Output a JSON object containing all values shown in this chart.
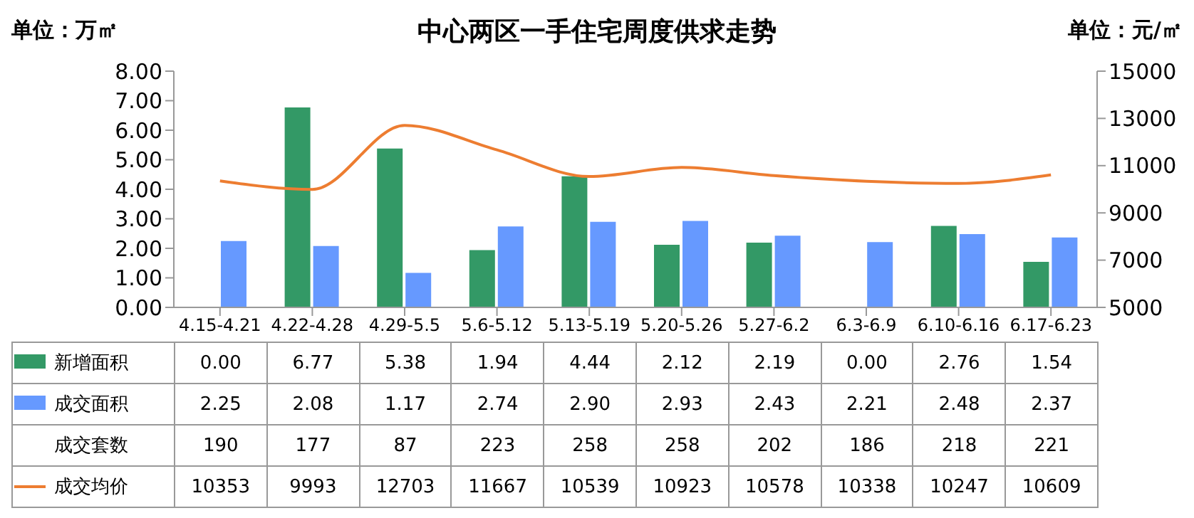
{
  "chart_data": {
    "type": "bar",
    "title": "中心两区一手住宅周度供求走势",
    "ylabel": "单位：万㎡",
    "y2label": "单位：元/㎡",
    "categories": [
      "4.15-4.21",
      "4.22-4.28",
      "4.29-5.5",
      "5.6-5.12",
      "5.13-5.19",
      "5.20-5.26",
      "5.27-6.2",
      "6.3-6.9",
      "6.10-6.16",
      "6.17-6.23"
    ],
    "series": [
      {
        "name": "新增面积",
        "color": "#339966",
        "values": [
          0.0,
          6.77,
          5.38,
          1.94,
          4.44,
          2.12,
          2.19,
          0.0,
          2.76,
          1.54
        ],
        "value_labels": [
          "0.00",
          "6.77",
          "5.38",
          "1.94",
          "4.44",
          "2.12",
          "2.19",
          "0.00",
          "2.76",
          "1.54"
        ]
      },
      {
        "name": "成交面积",
        "color": "#6699ff",
        "values": [
          2.25,
          2.08,
          1.17,
          2.74,
          2.9,
          2.93,
          2.43,
          2.21,
          2.48,
          2.37
        ],
        "value_labels": [
          "2.25",
          "2.08",
          "1.17",
          "2.74",
          "2.90",
          "2.93",
          "2.43",
          "2.21",
          "2.48",
          "2.37"
        ]
      },
      {
        "name": "成交套数",
        "type": "other",
        "values": [
          null,
          null,
          null,
          null,
          null,
          null,
          null,
          null,
          null,
          null
        ],
        "value_labels": [
          "190",
          "177",
          "87",
          "223",
          "258",
          "258",
          "202",
          "186",
          "218",
          "221"
        ]
      },
      {
        "name": "成交均价",
        "type": "line",
        "axis": "y2",
        "color": "#ed7d31",
        "values": [
          10353,
          9993,
          12703,
          11667,
          10539,
          10923,
          10578,
          10338,
          10247,
          10609
        ],
        "value_labels": [
          "10353",
          "9993",
          "12703",
          "11667",
          "10539",
          "10923",
          "10578",
          "10338",
          "10247",
          "10609"
        ]
      }
    ],
    "ylim": [
      0,
      8
    ],
    "yticks": [
      {
        "value": 0,
        "label": "0.00"
      },
      {
        "value": 1,
        "label": "1.00"
      },
      {
        "value": 2,
        "label": "2.00"
      },
      {
        "value": 3,
        "label": "3.00"
      },
      {
        "value": 4,
        "label": "4.00"
      },
      {
        "value": 5,
        "label": "5.00"
      },
      {
        "value": 6,
        "label": "6.00"
      },
      {
        "value": 7,
        "label": "7.00"
      },
      {
        "value": 8,
        "label": "8.00"
      }
    ],
    "y2lim": [
      5000,
      15000
    ],
    "y2ticks": [
      5000,
      7000,
      9000,
      11000,
      13000,
      15000
    ],
    "marker": "none",
    "legend": "bottom"
  }
}
